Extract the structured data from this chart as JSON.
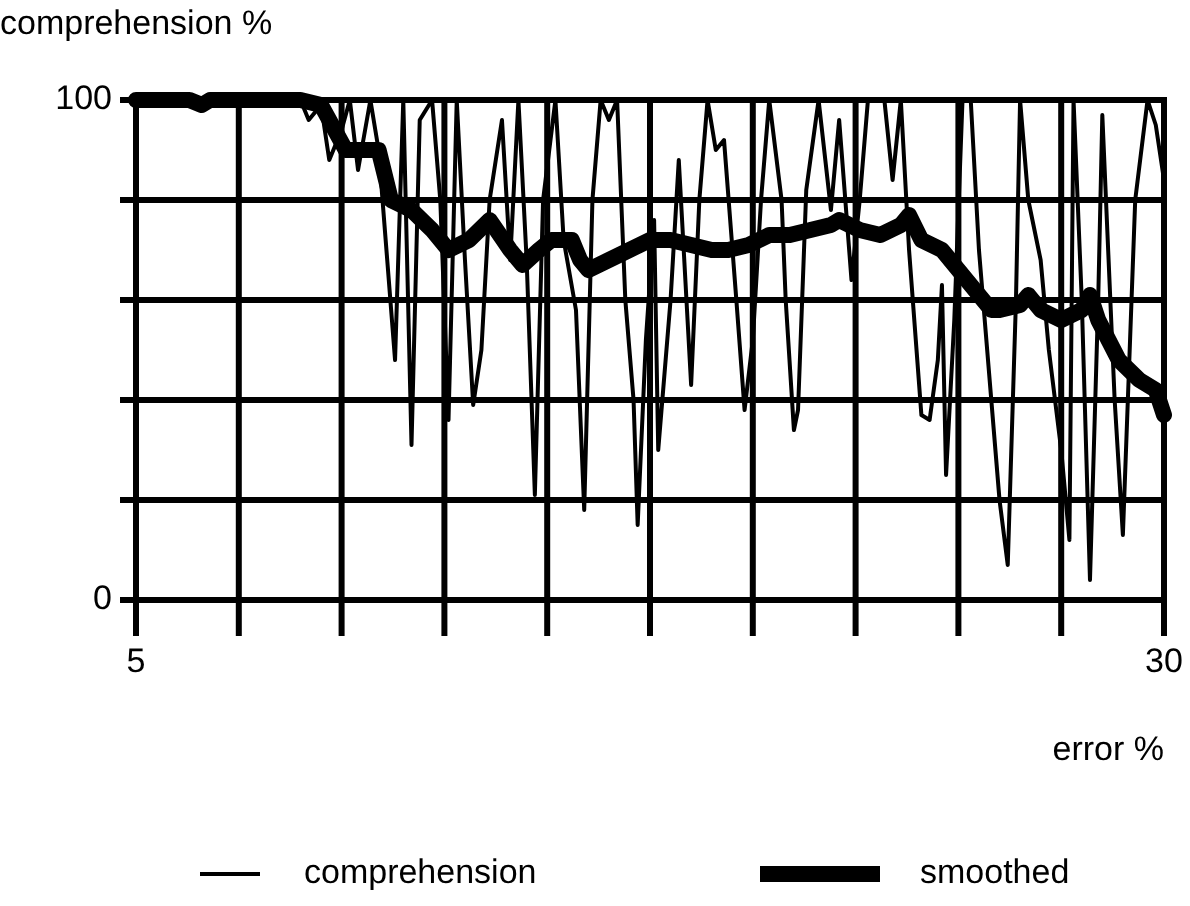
{
  "chart_data": {
    "type": "line",
    "ylabel": "comprehension %",
    "xlabel": "error %",
    "xlim": [
      5,
      30
    ],
    "ylim": [
      0,
      100
    ],
    "xticks": [
      5,
      {
        "value": 7.5,
        "label": null
      },
      {
        "value": 10,
        "label": null
      },
      {
        "value": 12.5,
        "label": null
      },
      {
        "value": 15,
        "label": null
      },
      {
        "value": 17.5,
        "label": null
      },
      {
        "value": 20,
        "label": null
      },
      {
        "value": 22.5,
        "label": null
      },
      {
        "value": 25,
        "label": null
      },
      {
        "value": 27.5,
        "label": null
      },
      30
    ],
    "yticks": [
      0,
      {
        "value": 20,
        "label": null
      },
      {
        "value": 40,
        "label": null
      },
      {
        "value": 60,
        "label": null
      },
      {
        "value": 80,
        "label": null
      },
      100
    ],
    "grid": true,
    "legend": "bottom",
    "marker": "none",
    "line_style": "solid",
    "series": [
      {
        "name": "comprehension",
        "color": "#000000",
        "x": [
          5.0,
          6.1,
          6.6,
          7.0,
          9.0,
          9.2,
          9.5,
          9.7,
          10.0,
          10.2,
          10.4,
          10.7,
          10.9,
          11.3,
          11.5,
          11.7,
          11.9,
          12.2,
          12.4,
          12.6,
          12.8,
          13.0,
          13.2,
          13.4,
          13.6,
          13.9,
          14.1,
          14.3,
          14.5,
          14.7,
          14.9,
          15.2,
          15.4,
          15.7,
          15.9,
          16.1,
          16.3,
          16.5,
          16.7,
          16.9,
          17.1,
          17.2,
          17.4,
          17.6,
          17.7,
          18.0,
          18.2,
          18.5,
          18.7,
          18.9,
          19.1,
          19.3,
          19.6,
          19.8,
          20.0,
          20.2,
          20.4,
          20.7,
          20.8,
          21.0,
          21.1,
          21.3,
          21.6,
          21.9,
          22.1,
          22.4,
          22.6,
          22.8,
          23.0,
          23.2,
          23.4,
          23.6,
          23.8,
          24.1,
          24.3,
          24.5,
          24.6,
          24.7,
          24.9,
          25.1,
          25.3,
          25.5,
          25.8,
          26.0,
          26.2,
          26.4,
          26.5,
          26.7,
          27.0,
          27.2,
          27.5,
          27.7,
          27.8,
          28.0,
          28.2,
          28.4,
          28.5,
          28.8,
          29.0,
          29.3,
          29.6,
          29.8,
          30.0
        ],
        "values": [
          100,
          100,
          98,
          100,
          100,
          96,
          99,
          88,
          94,
          100,
          86,
          100,
          90,
          48,
          100,
          31,
          96,
          100,
          80,
          36,
          100,
          68,
          39,
          50,
          80,
          96,
          68,
          100,
          68,
          21,
          80,
          100,
          72,
          58,
          18,
          80,
          100,
          96,
          100,
          60,
          40,
          15,
          52,
          76,
          30,
          60,
          88,
          43,
          80,
          100,
          90,
          92,
          60,
          38,
          52,
          80,
          100,
          80,
          60,
          34,
          38,
          82,
          100,
          78,
          96,
          64,
          80,
          100,
          100,
          100,
          84,
          100,
          70,
          37,
          36,
          48,
          63,
          25,
          56,
          100,
          100,
          70,
          40,
          20,
          7,
          60,
          100,
          80,
          68,
          50,
          30,
          12,
          100,
          60,
          4,
          60,
          97,
          40,
          13,
          80,
          100,
          95,
          84
        ]
      },
      {
        "name": "smoothed",
        "color": "#000000",
        "x": [
          5.0,
          6.3,
          6.6,
          6.8,
          9.0,
          9.5,
          9.7,
          10.1,
          10.9,
          11.2,
          11.7,
          12.2,
          12.6,
          13.1,
          13.6,
          14.1,
          14.4,
          14.8,
          15.1,
          15.6,
          15.8,
          16.0,
          16.5,
          17.0,
          17.5,
          18.0,
          18.5,
          19.0,
          19.4,
          19.9,
          20.4,
          20.9,
          21.4,
          21.9,
          22.1,
          22.6,
          23.1,
          23.6,
          23.8,
          24.1,
          24.6,
          25.0,
          25.5,
          25.8,
          26.0,
          26.5,
          26.7,
          27.0,
          27.5,
          28.0,
          28.2,
          28.4,
          28.9,
          29.4,
          29.8,
          30.0
        ],
        "values": [
          100,
          100,
          99,
          100,
          100,
          99,
          96,
          90,
          90,
          80,
          78,
          74,
          70,
          72,
          76,
          70,
          67,
          70,
          72,
          72,
          68,
          66,
          68,
          70,
          72,
          72,
          71,
          70,
          70,
          71,
          73,
          73,
          74,
          75,
          76,
          74,
          73,
          75,
          77,
          72,
          70,
          66,
          61,
          58,
          58,
          59,
          61,
          58,
          56,
          58,
          61,
          56,
          48,
          44,
          42,
          37
        ]
      }
    ]
  }
}
